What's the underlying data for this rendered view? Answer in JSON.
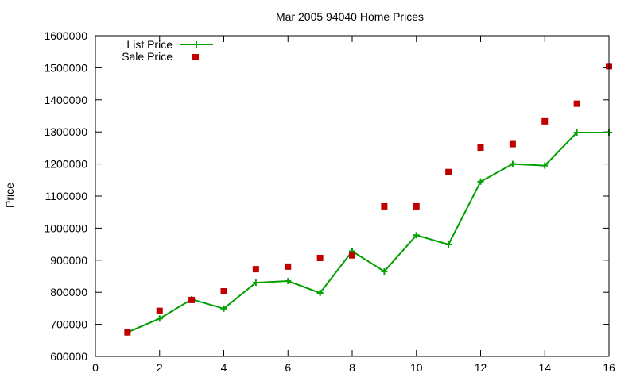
{
  "chart_data": {
    "type": "line",
    "title": "Mar 2005 94040 Home Prices",
    "xlabel": "",
    "ylabel": "Price",
    "xlim": [
      0,
      16
    ],
    "ylim": [
      600000,
      1600000
    ],
    "xticks": [
      0,
      2,
      4,
      6,
      8,
      10,
      12,
      14,
      16
    ],
    "yticks": [
      600000,
      700000,
      800000,
      900000,
      1000000,
      1100000,
      1200000,
      1300000,
      1400000,
      1500000,
      1600000
    ],
    "grid": false,
    "legend_position": "top-left",
    "series": [
      {
        "name": "List Price",
        "style": "line+plus",
        "color": "#00a000",
        "x": [
          1,
          2,
          3,
          4,
          5,
          6,
          7,
          8,
          9,
          10,
          11,
          12,
          13,
          14,
          15,
          16
        ],
        "values": [
          675000,
          718000,
          778000,
          749000,
          830000,
          835000,
          798000,
          928000,
          865000,
          978000,
          949000,
          1145000,
          1200000,
          1195000,
          1298000,
          1298000
        ]
      },
      {
        "name": "Sale Price",
        "style": "square-points",
        "color": "#c00000",
        "x": [
          1,
          2,
          3,
          4,
          5,
          6,
          7,
          8,
          9,
          10,
          11,
          12,
          13,
          14,
          15,
          16
        ],
        "values": [
          675000,
          742000,
          776000,
          803000,
          872000,
          880000,
          907000,
          915000,
          1068000,
          1068000,
          1175000,
          1251000,
          1262000,
          1333000,
          1388000,
          1505000
        ]
      }
    ]
  }
}
